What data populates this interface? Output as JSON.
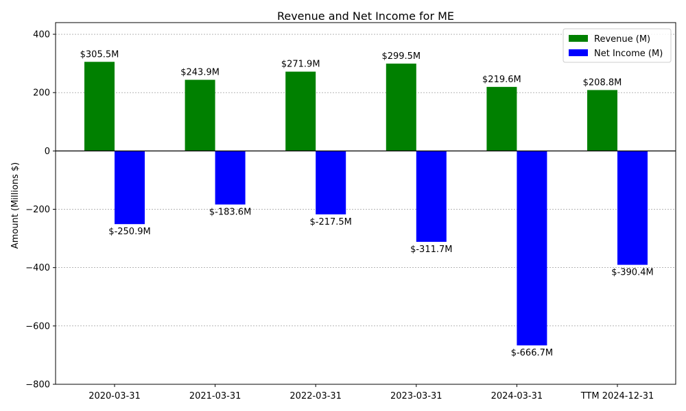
{
  "chart_data": {
    "type": "bar",
    "title": "Revenue and Net Income for ME",
    "xlabel": "",
    "ylabel": "Amount (Millions $)",
    "ylim": [
      -800,
      440
    ],
    "yticks": [
      -800,
      -600,
      -400,
      -200,
      0,
      200,
      400
    ],
    "ytick_labels": [
      "−800",
      "−600",
      "−400",
      "−200",
      "0",
      "200",
      "400"
    ],
    "grid": true,
    "legend_position": "top-right",
    "categories": [
      "2020-03-31",
      "2021-03-31",
      "2022-03-31",
      "2023-03-31",
      "2024-03-31",
      "TTM 2024-12-31"
    ],
    "series": [
      {
        "name": "Revenue (M)",
        "color": "#008000",
        "values": [
          305.5,
          243.9,
          271.9,
          299.5,
          219.6,
          208.8
        ],
        "labels": [
          "$305.5M",
          "$243.9M",
          "$271.9M",
          "$299.5M",
          "$219.6M",
          "$208.8M"
        ]
      },
      {
        "name": "Net Income (M)",
        "color": "#0000ff",
        "values": [
          -250.9,
          -183.6,
          -217.5,
          -311.7,
          -666.7,
          -390.4
        ],
        "labels": [
          "$-250.9M",
          "$-183.6M",
          "$-217.5M",
          "$-311.7M",
          "$-666.7M",
          "$-390.4M"
        ]
      }
    ]
  }
}
